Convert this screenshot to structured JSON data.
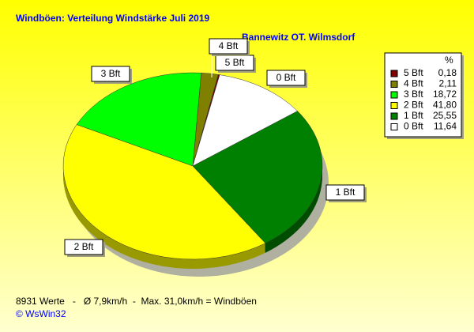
{
  "chart_data": {
    "type": "pie",
    "title": "Windböen: Verteilung Windstärke  Juli 2019",
    "subtitle": "Bannewitz OT. Wilmsdorf",
    "legend_title": "%",
    "categories": [
      "5 Bft",
      "4 Bft",
      "3 Bft",
      "2 Bft",
      "1 Bft",
      "0 Bft"
    ],
    "values": [
      0.18,
      2.11,
      18.72,
      41.8,
      25.55,
      11.64
    ],
    "value_labels": [
      "0,18",
      "2,11",
      "18,72",
      "41,80",
      "25,55",
      "11,64"
    ],
    "colors": [
      "#800000",
      "#808000",
      "#00ff00",
      "#ffff00",
      "#008000",
      "#ffffff"
    ],
    "legend": "upper right",
    "footnote": "8931 Werte   -   Ø 7,9km/h  -  Max. 31,0km/h = Windböen",
    "copyright": "© WsWin32"
  }
}
